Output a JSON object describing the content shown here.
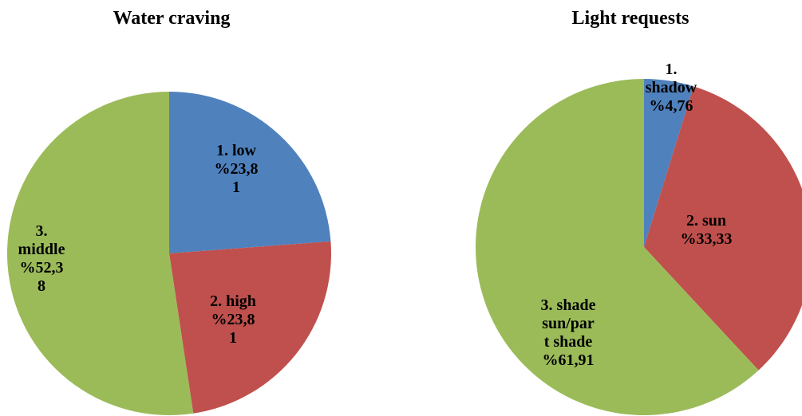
{
  "chart_data": [
    {
      "type": "pie",
      "title": "Water craving",
      "categories": [
        "1. low",
        "2. high",
        "3. middle"
      ],
      "values": [
        23.81,
        23.81,
        52.38
      ],
      "labels": [
        [
          "1. low",
          "%23,8",
          "1"
        ],
        [
          "2. high",
          "%23,8",
          "1"
        ],
        [
          "3.",
          "middle",
          "%52,3",
          "8"
        ]
      ],
      "colors": [
        "#4f81bd",
        "#c0504d",
        "#9bbb59"
      ],
      "start_angle": "12 o'clock",
      "direction": "clockwise"
    },
    {
      "type": "pie",
      "title": "Light requests",
      "categories": [
        "1. shadow",
        "2. sun",
        "3. shade sun/part shade"
      ],
      "values": [
        4.76,
        33.33,
        61.91
      ],
      "labels": [
        [
          "1.",
          "shadow",
          "%4,76"
        ],
        [
          "2. sun",
          "%33,33"
        ],
        [
          "3. shade",
          "sun/par",
          "t shade",
          "%61,91"
        ]
      ],
      "colors": [
        "#4f81bd",
        "#c0504d",
        "#9bbb59"
      ],
      "start_angle": "12 o'clock",
      "direction": "clockwise"
    }
  ]
}
